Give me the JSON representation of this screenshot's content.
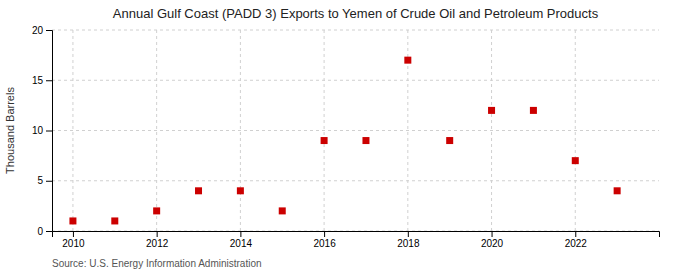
{
  "chart_data": {
    "type": "scatter",
    "title": "Annual Gulf Coast (PADD 3) Exports to Yemen of Crude Oil and Petroleum Products",
    "ylabel": "Thousand Barrels",
    "source": "Source: U.S. Energy Information Administration",
    "x": [
      2010,
      2011,
      2012,
      2013,
      2014,
      2015,
      2016,
      2017,
      2018,
      2019,
      2020,
      2021,
      2022,
      2023
    ],
    "values": [
      1,
      1,
      2,
      4,
      4,
      2,
      9,
      9,
      17,
      9,
      12,
      12,
      7,
      4
    ],
    "color": "#cc0000",
    "marker": "square",
    "xlim": [
      2009.5,
      2024.0
    ],
    "ylim": [
      0,
      20
    ],
    "xticks": [
      2010,
      2012,
      2014,
      2016,
      2018,
      2020,
      2022
    ],
    "yticks": [
      0,
      5,
      10,
      15,
      20
    ],
    "grid": true
  }
}
